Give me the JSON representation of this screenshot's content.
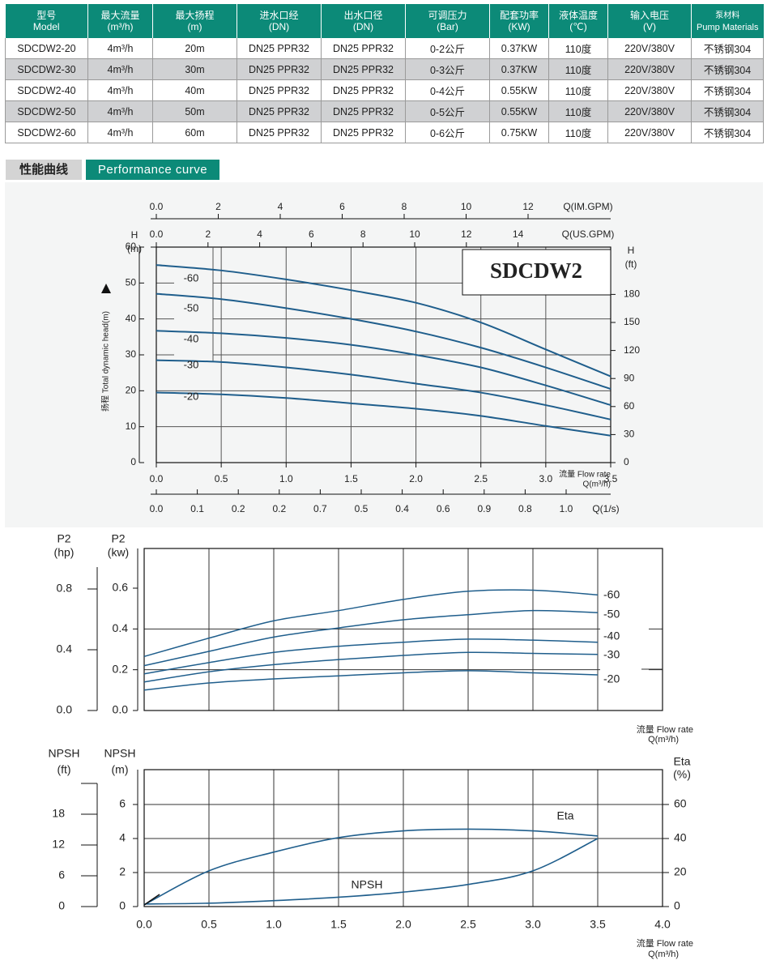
{
  "spec_table": {
    "headers": [
      {
        "top": "型号",
        "sub": "Model"
      },
      {
        "top": "最大流量",
        "sub": "(m³/h)"
      },
      {
        "top": "最大扬程",
        "sub": "(m)"
      },
      {
        "top": "进水口经",
        "sub": "(DN)"
      },
      {
        "top": "出水口径",
        "sub": "(DN)"
      },
      {
        "top": "可调压力",
        "sub": "(Bar)"
      },
      {
        "top": "配套功率",
        "sub": "(KW)"
      },
      {
        "top": "液体温度",
        "sub": "(℃)"
      },
      {
        "top": "输入电压",
        "sub": "(V)"
      },
      {
        "top": "泵材料",
        "sub": "Pump Materials"
      }
    ],
    "rows": [
      [
        "SDCDW2-20",
        "4m³/h",
        "20m",
        "DN25 PPR32",
        "DN25 PPR32",
        "0-2公斤",
        "0.37KW",
        "110度",
        "220V/380V",
        "不锈钢304"
      ],
      [
        "SDCDW2-30",
        "4m³/h",
        "30m",
        "DN25 PPR32",
        "DN25 PPR32",
        "0-3公斤",
        "0.37KW",
        "110度",
        "220V/380V",
        "不锈钢304"
      ],
      [
        "SDCDW2-40",
        "4m³/h",
        "40m",
        "DN25 PPR32",
        "DN25 PPR32",
        "0-4公斤",
        "0.55KW",
        "110度",
        "220V/380V",
        "不锈钢304"
      ],
      [
        "SDCDW2-50",
        "4m³/h",
        "50m",
        "DN25 PPR32",
        "DN25 PPR32",
        "0-5公斤",
        "0.55KW",
        "110度",
        "220V/380V",
        "不锈钢304"
      ],
      [
        "SDCDW2-60",
        "4m³/h",
        "60m",
        "DN25 PPR32",
        "DN25 PPR32",
        "0-6公斤",
        "0.75KW",
        "110度",
        "220V/380V",
        "不锈钢304"
      ]
    ]
  },
  "section": {
    "title_cn": "性能曲线",
    "title_en": "Performance curve"
  },
  "colors": {
    "accent": "#0c8a78",
    "curve": "#1f5e8c",
    "row_alt": "#d0d1d3"
  },
  "chart_data": [
    {
      "type": "line",
      "title": "SDCDW2",
      "xlabel": "流量 Flow rate",
      "xunit": "Q(m³/h)",
      "ylabel": "扬程 Total dynamic head(m)",
      "yunit_top": "H",
      "yunit_top2": "(m)",
      "y2label": "H",
      "y2unit": "(ft)",
      "top_axis1": {
        "label": "Q(IM.GPM)",
        "ticks": [
          "0.0",
          "2",
          "4",
          "6",
          "8",
          "10",
          "12"
        ],
        "values": [
          0,
          2,
          4,
          6,
          8,
          10,
          12
        ]
      },
      "top_axis2": {
        "label": "Q(US.GPM)",
        "ticks": [
          "0.0",
          "2",
          "4",
          "6",
          "8",
          "10",
          "12",
          "14"
        ],
        "values": [
          0,
          2,
          4,
          6,
          8,
          10,
          12,
          14
        ]
      },
      "x_ticks": [
        "0.0",
        "0.5",
        "1.0",
        "1.5",
        "2.0",
        "2.5",
        "3.0",
        "3.5"
      ],
      "bottom_axis2": {
        "label": "Q(1/s)",
        "ticks": [
          "0.0",
          "0.1",
          "0.2",
          "0.2",
          "0.7",
          "0.5",
          "0.4",
          "0.6",
          "0.9",
          "0.8",
          "1.0"
        ]
      },
      "y_ticks": [
        "0",
        "10",
        "20",
        "30",
        "40",
        "50",
        "60"
      ],
      "y2_ticks": [
        "0",
        "30",
        "60",
        "90",
        "120",
        "150",
        "180"
      ],
      "xlim": [
        0,
        3.5
      ],
      "ylim": [
        0,
        60
      ],
      "series": [
        {
          "name": "-60",
          "x": [
            0,
            0.5,
            1.0,
            1.5,
            2.0,
            2.5,
            3.0,
            3.5
          ],
          "y": [
            55,
            53.5,
            51,
            48,
            44.5,
            39,
            31.5,
            24
          ]
        },
        {
          "name": "-50",
          "x": [
            0,
            0.5,
            1.0,
            1.5,
            2.0,
            2.5,
            3.0,
            3.5
          ],
          "y": [
            47,
            45.5,
            43,
            40,
            36.5,
            32,
            26.5,
            20.5
          ]
        },
        {
          "name": "-40",
          "x": [
            0,
            0.5,
            1.0,
            1.5,
            2.0,
            2.5,
            3.0,
            3.5
          ],
          "y": [
            36.7,
            36,
            34.7,
            32.8,
            30,
            26.5,
            21.5,
            16
          ]
        },
        {
          "name": "-30",
          "x": [
            0,
            0.5,
            1.0,
            1.5,
            2.0,
            2.5,
            3.0,
            3.5
          ],
          "y": [
            28.5,
            28,
            26.5,
            24.5,
            22,
            19.5,
            16,
            12
          ]
        },
        {
          "name": "-20",
          "x": [
            0,
            0.5,
            1.0,
            1.5,
            2.0,
            2.5,
            3.0,
            3.5
          ],
          "y": [
            19.5,
            19,
            18,
            16.5,
            15,
            13,
            10.2,
            7.5
          ]
        }
      ],
      "grid": true
    },
    {
      "type": "line",
      "xlabel": "流量 Flow rate",
      "xunit": "Q(m³/h)",
      "ylabel": "P2",
      "yunit": "(kw)",
      "y2label": "P2",
      "y2unit": "(hp)",
      "y_ticks": [
        "0.0",
        "0.2",
        "0.4",
        "0.6"
      ],
      "y_hp_ticks": [
        "0.0",
        "0.4",
        "0.8"
      ],
      "xlim": [
        0,
        3.5
      ],
      "ylim": [
        0,
        0.6
      ],
      "series": [
        {
          "name": "-60",
          "x": [
            0,
            0.5,
            1.0,
            1.5,
            2.0,
            2.5,
            3.0,
            3.5
          ],
          "y": [
            0.265,
            0.355,
            0.44,
            0.49,
            0.545,
            0.585,
            0.59,
            0.567
          ]
        },
        {
          "name": "-50",
          "x": [
            0,
            0.5,
            1.0,
            1.5,
            2.0,
            2.5,
            3.0,
            3.5
          ],
          "y": [
            0.22,
            0.29,
            0.36,
            0.405,
            0.445,
            0.47,
            0.49,
            0.48
          ]
        },
        {
          "name": "-40",
          "x": [
            0,
            0.5,
            1.0,
            1.5,
            2.0,
            2.5,
            3.0,
            3.5
          ],
          "y": [
            0.18,
            0.235,
            0.285,
            0.315,
            0.335,
            0.35,
            0.345,
            0.335
          ]
        },
        {
          "name": "-30",
          "x": [
            0,
            0.5,
            1.0,
            1.5,
            2.0,
            2.5,
            3.0,
            3.5
          ],
          "y": [
            0.14,
            0.19,
            0.225,
            0.25,
            0.27,
            0.285,
            0.28,
            0.275
          ]
        },
        {
          "name": "-20",
          "x": [
            0,
            0.5,
            1.0,
            1.5,
            2.0,
            2.5,
            3.0,
            3.5
          ],
          "y": [
            0.1,
            0.135,
            0.155,
            0.17,
            0.185,
            0.195,
            0.185,
            0.175
          ]
        }
      ],
      "grid": true
    },
    {
      "type": "line",
      "xlabel": "流量 Flow rate",
      "xunit": "Q(m³/h)",
      "ylabel": "NPSH",
      "yunit": "(m)",
      "yft_label": "NPSH",
      "yft_unit": "(ft)",
      "y2label": "Eta",
      "y2unit": "(%)",
      "x_ticks": [
        "0.0",
        "0.5",
        "1.0",
        "1.5",
        "2.0",
        "2.5",
        "3.0",
        "3.5",
        "4.0"
      ],
      "y_ticks": [
        "0",
        "2",
        "4",
        "6"
      ],
      "y_ft_ticks": [
        "0",
        "6",
        "12",
        "18"
      ],
      "y2_ticks": [
        "0",
        "20",
        "40",
        "60"
      ],
      "xlim": [
        0,
        4.0
      ],
      "ylim": [
        0,
        6
      ],
      "series": [
        {
          "name": "Eta",
          "axis": "right",
          "x": [
            0,
            0.5,
            1.0,
            1.5,
            2.0,
            2.5,
            3.0,
            3.5
          ],
          "y": [
            1,
            21,
            32,
            40.5,
            44.5,
            45.5,
            44.5,
            41.5
          ]
        },
        {
          "name": "NPSH",
          "axis": "left",
          "x": [
            0,
            0.5,
            1.0,
            1.5,
            2.0,
            2.5,
            3.0,
            3.5
          ],
          "y": [
            0.15,
            0.2,
            0.35,
            0.55,
            0.85,
            1.3,
            2.1,
            4.0
          ]
        }
      ],
      "grid": true
    }
  ]
}
